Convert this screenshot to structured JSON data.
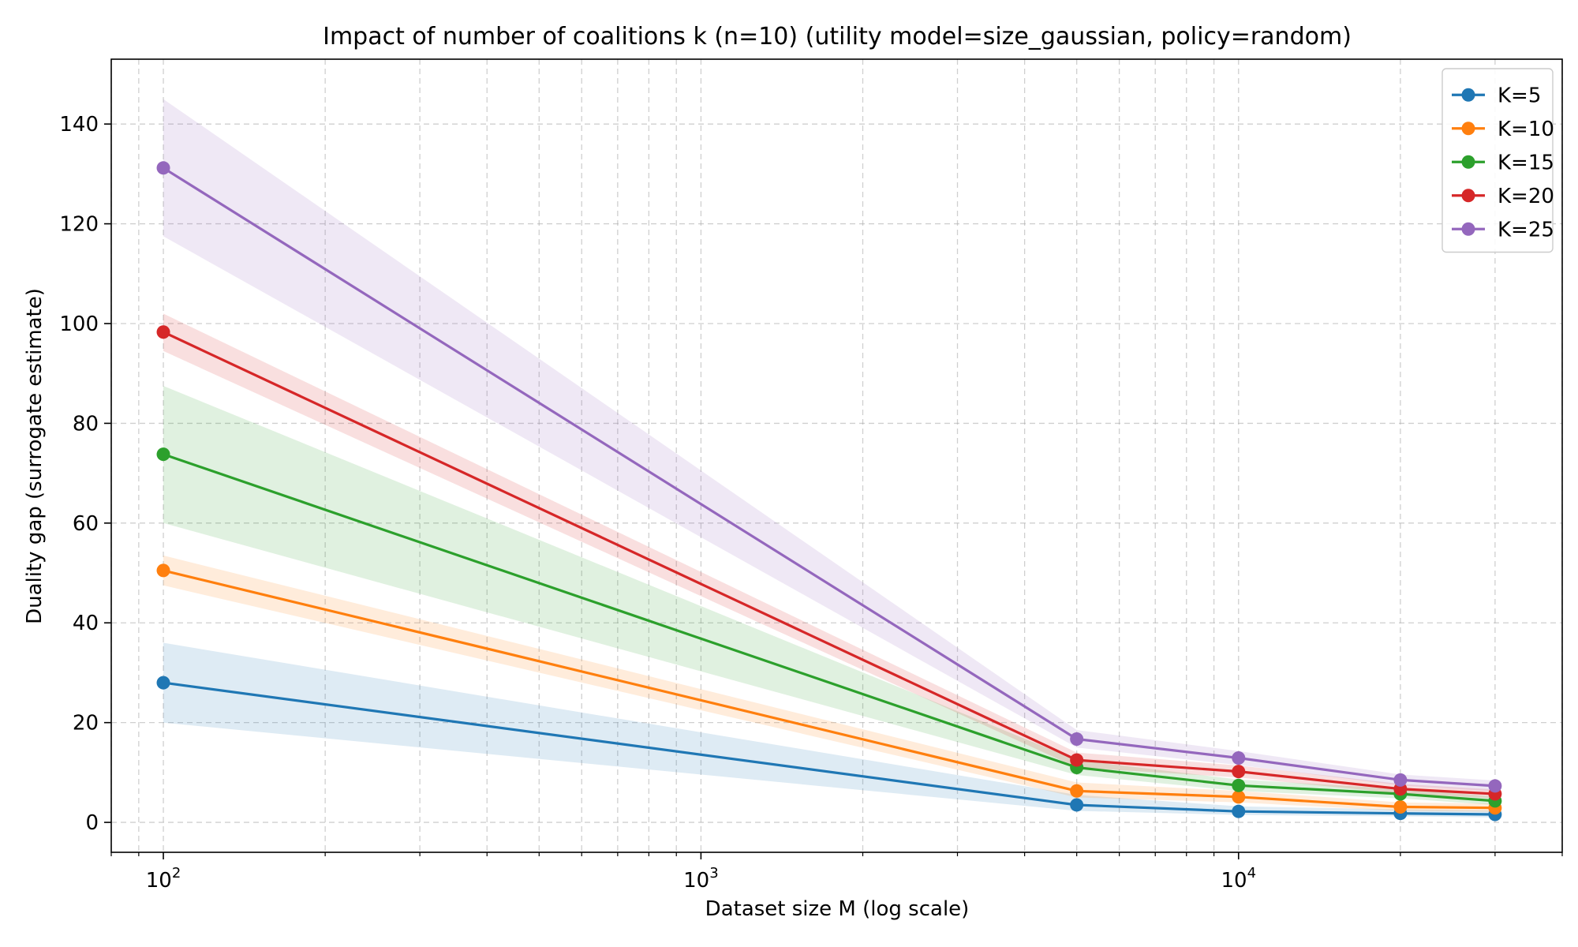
{
  "chart_data": {
    "type": "line",
    "title": "Impact of number of coalitions k (n=10) (utility model=size_gaussian, policy=random)",
    "xlabel": "Dataset size M (log scale)",
    "ylabel": "Duality gap (surrogate estimate)",
    "xscale": "log",
    "xlim": [
      80,
      40000
    ],
    "ylim": [
      -6,
      153
    ],
    "x_ticks": [
      {
        "value": 100,
        "base": "10",
        "exp": "2"
      },
      {
        "value": 1000,
        "base": "10",
        "exp": "3"
      },
      {
        "value": 10000,
        "base": "10",
        "exp": "4"
      }
    ],
    "y_ticks": [
      0,
      20,
      40,
      60,
      80,
      100,
      120,
      140
    ],
    "grid": true,
    "legend_position": "top-right",
    "x": [
      100,
      5000,
      10000,
      20000,
      30000
    ],
    "series": [
      {
        "name": "K=5",
        "color": "#1f77b4",
        "values": [
          28,
          3.5,
          2.2,
          1.8,
          1.6
        ],
        "lower": [
          20,
          2.3,
          1.5,
          1.2,
          1.0
        ],
        "upper": [
          36,
          5.5,
          3.2,
          2.6,
          2.4
        ]
      },
      {
        "name": "K=10",
        "color": "#ff7f0e",
        "values": [
          50.5,
          6.3,
          5.1,
          3.1,
          2.9
        ],
        "lower": [
          47.5,
          5.0,
          4.0,
          2.3,
          2.1
        ],
        "upper": [
          53.5,
          8.0,
          6.3,
          4.0,
          3.8
        ]
      },
      {
        "name": "K=15",
        "color": "#2ca02c",
        "values": [
          73.8,
          11.0,
          7.4,
          5.7,
          4.3
        ],
        "lower": [
          60,
          9.5,
          6.3,
          4.8,
          3.5
        ],
        "upper": [
          87.5,
          12.5,
          8.6,
          6.7,
          5.2
        ]
      },
      {
        "name": "K=20",
        "color": "#d62728",
        "values": [
          98.3,
          12.5,
          10.2,
          6.7,
          5.7
        ],
        "lower": [
          94.5,
          11.0,
          9.0,
          5.8,
          4.8
        ],
        "upper": [
          102,
          14.0,
          11.4,
          7.7,
          6.6
        ]
      },
      {
        "name": "K=25",
        "color": "#9467bd",
        "values": [
          131.2,
          16.7,
          12.9,
          8.5,
          7.3
        ],
        "lower": [
          117.5,
          15.0,
          11.5,
          7.4,
          6.2
        ],
        "upper": [
          145,
          18.5,
          14.3,
          9.6,
          8.4
        ]
      }
    ]
  }
}
